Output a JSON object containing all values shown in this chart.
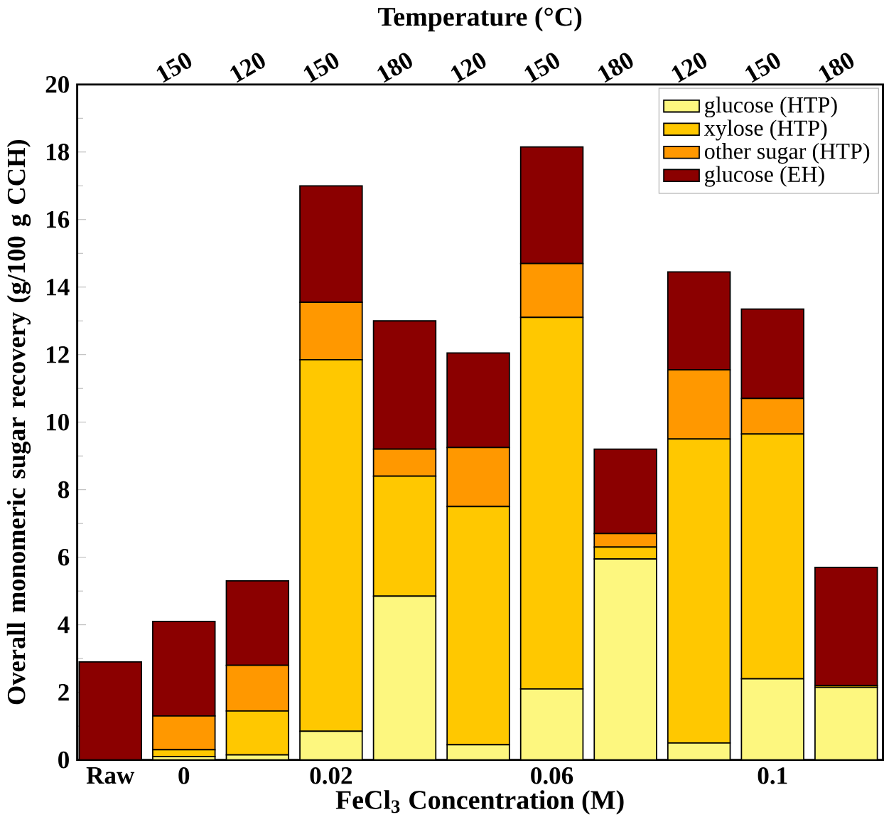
{
  "chart_data": {
    "type": "bar",
    "stacked": true,
    "xlabel": "FeCl$_{3}$ Concentration (M)",
    "x2label": "Temperature (°C)",
    "ylabel": "Overall monomeric sugar recovery (g/100 g CCH)",
    "categories": [
      "Raw",
      "0",
      null,
      "0.02",
      null,
      null,
      "0.06",
      null,
      null,
      "0.1",
      null
    ],
    "annotations": [
      null,
      "150",
      "120",
      "150",
      "180",
      "120",
      "150",
      "180",
      "120",
      "150",
      "180"
    ],
    "ylim": [
      0,
      20
    ],
    "yticks": [
      0,
      2,
      4,
      6,
      8,
      10,
      12,
      14,
      16,
      18,
      20
    ],
    "legend": "top right",
    "series": [
      {
        "name": "glucose (HTP)",
        "color": "#fdf77f",
        "values": [
          0,
          0.1,
          0.15,
          0.85,
          4.85,
          0.45,
          2.1,
          5.95,
          0.5,
          2.4,
          2.15
        ]
      },
      {
        "name": "xylose (HTP)",
        "color": "#ffc800",
        "values": [
          0,
          0.2,
          1.3,
          11.0,
          3.55,
          7.05,
          11.0,
          0.35,
          9.0,
          7.25,
          0.05
        ]
      },
      {
        "name": "other sugar (HTP)",
        "color": "#ff9800",
        "values": [
          0,
          1.0,
          1.35,
          1.7,
          0.8,
          1.75,
          1.6,
          0.4,
          2.05,
          1.05,
          0
        ]
      },
      {
        "name": "glucose (EH)",
        "color": "#8b0000",
        "values": [
          2.9,
          2.8,
          2.5,
          3.45,
          3.8,
          2.8,
          3.45,
          2.5,
          2.9,
          2.65,
          3.5
        ]
      }
    ]
  }
}
